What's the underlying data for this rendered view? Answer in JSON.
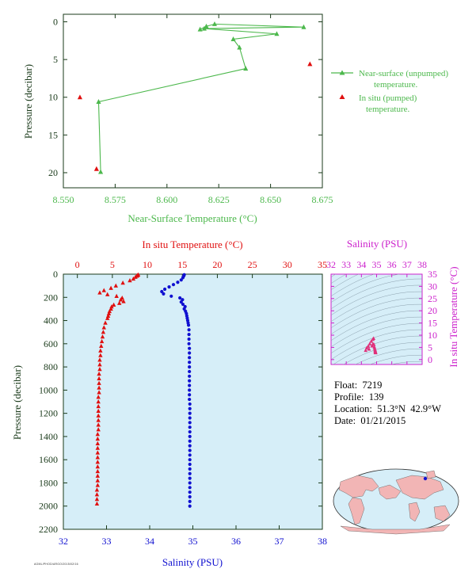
{
  "colors": {
    "near_surface": "#4cb84c",
    "in_situ": "#e01010",
    "salinity": "#1010d0",
    "salinity_axis": "#cc22cc",
    "axis": "#1a3a1a",
    "panel_bg": "#d6eef8",
    "land": "#f2b5b5",
    "ocean": "#d6eef8"
  },
  "info": {
    "float": "Float:  7219",
    "profile": "Profile:  139",
    "location": "Location:  51.3°N  42.9°W",
    "date": "Date:  01/21/2015"
  },
  "stamp": "AOML/PHOD/ARGO/2015/02/16",
  "chart_data": [
    {
      "type": "line",
      "title": "",
      "xlabel": "Near-Surface Temperature (°C)",
      "ylabel": "Pressure (decibar)",
      "xlim": [
        8.55,
        8.675
      ],
      "ylim": [
        22,
        -1
      ],
      "xticks": [
        "8.550",
        "8.575",
        "8.600",
        "8.625",
        "8.650",
        "8.675"
      ],
      "yticks": [
        "0",
        "5",
        "10",
        "15",
        "20"
      ],
      "grid": false,
      "legend_position": "right",
      "series": [
        {
          "name": "Near-surface (unpumped) temperature.",
          "marker": "triangle",
          "line": true,
          "points": [
            [
              8.616,
              1.0
            ],
            [
              8.619,
              0.6
            ],
            [
              8.623,
              0.3
            ],
            [
              8.666,
              0.7
            ],
            [
              8.618,
              0.9
            ],
            [
              8.653,
              1.6
            ],
            [
              8.632,
              2.3
            ],
            [
              8.635,
              3.4
            ],
            [
              8.638,
              6.2
            ],
            [
              8.567,
              10.6
            ],
            [
              8.568,
              19.9
            ]
          ]
        },
        {
          "name": "In situ (pumped) temperature.",
          "marker": "triangle",
          "line": false,
          "points": [
            [
              8.558,
              10.0
            ],
            [
              8.669,
              5.6
            ],
            [
              8.566,
              19.5
            ]
          ]
        }
      ]
    },
    {
      "type": "scatter",
      "title": "",
      "ylabel": "Pressure (decibar)",
      "ylim": [
        2200,
        0
      ],
      "yticks": [
        "0",
        "200",
        "400",
        "600",
        "800",
        "1000",
        "1200",
        "1400",
        "1600",
        "1800",
        "2000",
        "2200"
      ],
      "top_axis": {
        "label": "In situ Temperature (°C)",
        "lim": [
          -2,
          35
        ],
        "ticks": [
          "0",
          "5",
          "10",
          "15",
          "20",
          "25",
          "30",
          "35"
        ]
      },
      "bottom_axis": {
        "label": "Salinity (PSU)",
        "lim": [
          32,
          38
        ],
        "ticks": [
          "32",
          "33",
          "34",
          "35",
          "36",
          "37",
          "38"
        ]
      },
      "series": [
        {
          "name": "In situ Temperature (°C)",
          "marker": "triangle",
          "axis": "top",
          "points": [
            [
              8.7,
              5
            ],
            [
              8.6,
              10
            ],
            [
              8.5,
              15
            ],
            [
              8.3,
              25
            ],
            [
              8.0,
              40
            ],
            [
              7.5,
              55
            ],
            [
              6.5,
              75
            ],
            [
              5.5,
              100
            ],
            [
              4.8,
              120
            ],
            [
              3.8,
              140
            ],
            [
              3.2,
              160
            ],
            [
              4.3,
              175
            ],
            [
              5.6,
              190
            ],
            [
              6.4,
              205
            ],
            [
              6.2,
              220
            ],
            [
              6.6,
              235
            ],
            [
              6.0,
              250
            ],
            [
              5.2,
              265
            ],
            [
              4.9,
              280
            ],
            [
              4.8,
              300
            ],
            [
              4.6,
              320
            ],
            [
              4.5,
              340
            ],
            [
              4.4,
              360
            ],
            [
              4.3,
              380
            ],
            [
              4.0,
              420
            ],
            [
              3.8,
              460
            ],
            [
              3.7,
              500
            ],
            [
              3.6,
              540
            ],
            [
              3.5,
              580
            ],
            [
              3.4,
              620
            ],
            [
              3.3,
              660
            ],
            [
              3.3,
              700
            ],
            [
              3.2,
              740
            ],
            [
              3.2,
              780
            ],
            [
              3.2,
              820
            ],
            [
              3.1,
              860
            ],
            [
              3.1,
              900
            ],
            [
              3.1,
              940
            ],
            [
              3.1,
              980
            ],
            [
              3.1,
              1020
            ],
            [
              3.0,
              1060
            ],
            [
              3.0,
              1100
            ],
            [
              3.0,
              1140
            ],
            [
              3.0,
              1180
            ],
            [
              3.0,
              1220
            ],
            [
              3.0,
              1260
            ],
            [
              3.0,
              1300
            ],
            [
              3.0,
              1340
            ],
            [
              2.9,
              1380
            ],
            [
              2.9,
              1420
            ],
            [
              2.9,
              1460
            ],
            [
              2.9,
              1500
            ],
            [
              2.9,
              1540
            ],
            [
              2.9,
              1580
            ],
            [
              2.9,
              1620
            ],
            [
              2.9,
              1660
            ],
            [
              2.9,
              1700
            ],
            [
              2.9,
              1740
            ],
            [
              2.9,
              1780
            ],
            [
              2.9,
              1820
            ],
            [
              2.8,
              1860
            ],
            [
              2.8,
              1900
            ],
            [
              2.8,
              1940
            ],
            [
              2.8,
              1980
            ]
          ]
        },
        {
          "name": "Salinity (PSU)",
          "marker": "circle",
          "axis": "bottom",
          "points": [
            [
              34.8,
              5
            ],
            [
              34.79,
              15
            ],
            [
              34.77,
              30
            ],
            [
              34.73,
              50
            ],
            [
              34.65,
              70
            ],
            [
              34.55,
              90
            ],
            [
              34.45,
              110
            ],
            [
              34.35,
              130
            ],
            [
              34.28,
              150
            ],
            [
              34.32,
              170
            ],
            [
              34.5,
              190
            ],
            [
              34.7,
              205
            ],
            [
              34.76,
              220
            ],
            [
              34.73,
              240
            ],
            [
              34.77,
              260
            ],
            [
              34.82,
              280
            ],
            [
              34.8,
              300
            ],
            [
              34.83,
              320
            ],
            [
              34.85,
              340
            ],
            [
              34.86,
              360
            ],
            [
              34.87,
              380
            ],
            [
              34.88,
              400
            ],
            [
              34.89,
              420
            ],
            [
              34.9,
              440
            ],
            [
              34.91,
              480
            ],
            [
              34.91,
              520
            ],
            [
              34.91,
              560
            ],
            [
              34.91,
              600
            ],
            [
              34.92,
              640
            ],
            [
              34.92,
              680
            ],
            [
              34.92,
              720
            ],
            [
              34.92,
              760
            ],
            [
              34.92,
              800
            ],
            [
              34.92,
              840
            ],
            [
              34.92,
              880
            ],
            [
              34.92,
              920
            ],
            [
              34.92,
              960
            ],
            [
              34.92,
              1000
            ],
            [
              34.92,
              1040
            ],
            [
              34.92,
              1080
            ],
            [
              34.93,
              1120
            ],
            [
              34.93,
              1160
            ],
            [
              34.93,
              1200
            ],
            [
              34.93,
              1240
            ],
            [
              34.93,
              1280
            ],
            [
              34.93,
              1320
            ],
            [
              34.93,
              1360
            ],
            [
              34.93,
              1400
            ],
            [
              34.93,
              1440
            ],
            [
              34.93,
              1480
            ],
            [
              34.93,
              1520
            ],
            [
              34.93,
              1560
            ],
            [
              34.93,
              1600
            ],
            [
              34.93,
              1640
            ],
            [
              34.93,
              1680
            ],
            [
              34.93,
              1720
            ],
            [
              34.93,
              1760
            ],
            [
              34.93,
              1800
            ],
            [
              34.93,
              1840
            ],
            [
              34.93,
              1880
            ],
            [
              34.93,
              1920
            ],
            [
              34.93,
              1960
            ],
            [
              34.93,
              2000
            ]
          ]
        }
      ]
    },
    {
      "type": "scatter",
      "title": "",
      "xlabel": "Salinity (PSU)",
      "ylabel": "In situ Temperature (°C)",
      "xlim": [
        32,
        38
      ],
      "ylim": [
        -2,
        35
      ],
      "xticks": [
        "32",
        "33",
        "34",
        "35",
        "36",
        "37",
        "38"
      ],
      "yticks": [
        "0",
        "5",
        "10",
        "15",
        "20",
        "25",
        "30",
        "35"
      ],
      "series": [
        {
          "name": "T-S",
          "marker": "triangle",
          "points": [
            [
              34.8,
              8.7
            ],
            [
              34.75,
              8.3
            ],
            [
              34.65,
              7.5
            ],
            [
              34.55,
              6.5
            ],
            [
              34.45,
              5.5
            ],
            [
              34.35,
              4.8
            ],
            [
              34.28,
              3.8
            ],
            [
              34.5,
              4.3
            ],
            [
              34.7,
              5.6
            ],
            [
              34.76,
              6.4
            ],
            [
              34.82,
              6.2
            ],
            [
              34.85,
              5.2
            ],
            [
              34.87,
              4.6
            ],
            [
              34.9,
              4.0
            ],
            [
              34.91,
              3.6
            ],
            [
              34.92,
              3.3
            ],
            [
              34.92,
              3.1
            ],
            [
              34.93,
              3.0
            ],
            [
              34.93,
              2.9
            ],
            [
              34.93,
              2.8
            ]
          ]
        }
      ]
    }
  ]
}
